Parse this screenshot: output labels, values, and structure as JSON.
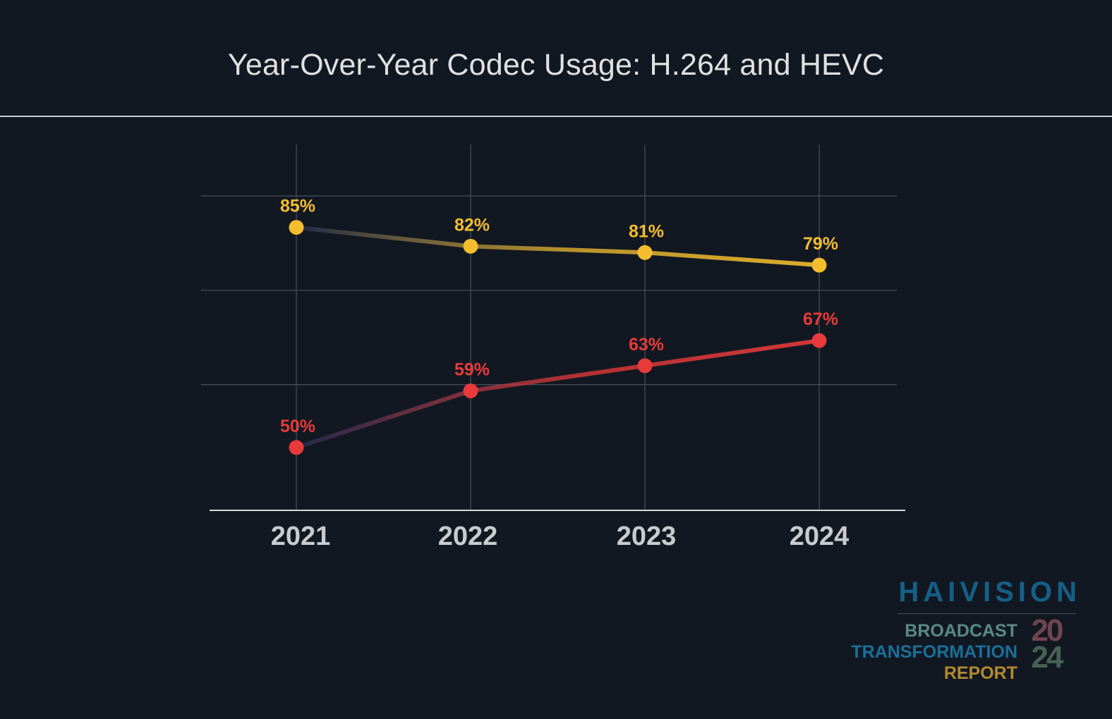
{
  "header": {
    "title": "Year-Over-Year Codec Usage: H.264 and HEVC"
  },
  "chart_data": {
    "type": "line",
    "title": "Year-Over-Year Codec Usage: H.264 and HEVC",
    "categories": [
      "2021",
      "2022",
      "2023",
      "2024"
    ],
    "series": [
      {
        "values": [
          85,
          82,
          81,
          79
        ],
        "value_labels": [
          "85%",
          "82%",
          "81%",
          "79%"
        ],
        "color": "#f3bd2e"
      },
      {
        "values": [
          50,
          59,
          63,
          67
        ],
        "value_labels": [
          "50%",
          "59%",
          "63%",
          "67%"
        ],
        "color": "#e83a3a"
      }
    ],
    "ylim": [
      40,
      90
    ],
    "grid": true,
    "legend": "none",
    "xlabel": "",
    "ylabel": ""
  },
  "brand": {
    "name": "HAIVISION",
    "report_line1": "BROADCAST",
    "report_line2": "TRANSFORMATION",
    "report_line3": "REPORT",
    "year_top": "20",
    "year_bottom": "24"
  }
}
